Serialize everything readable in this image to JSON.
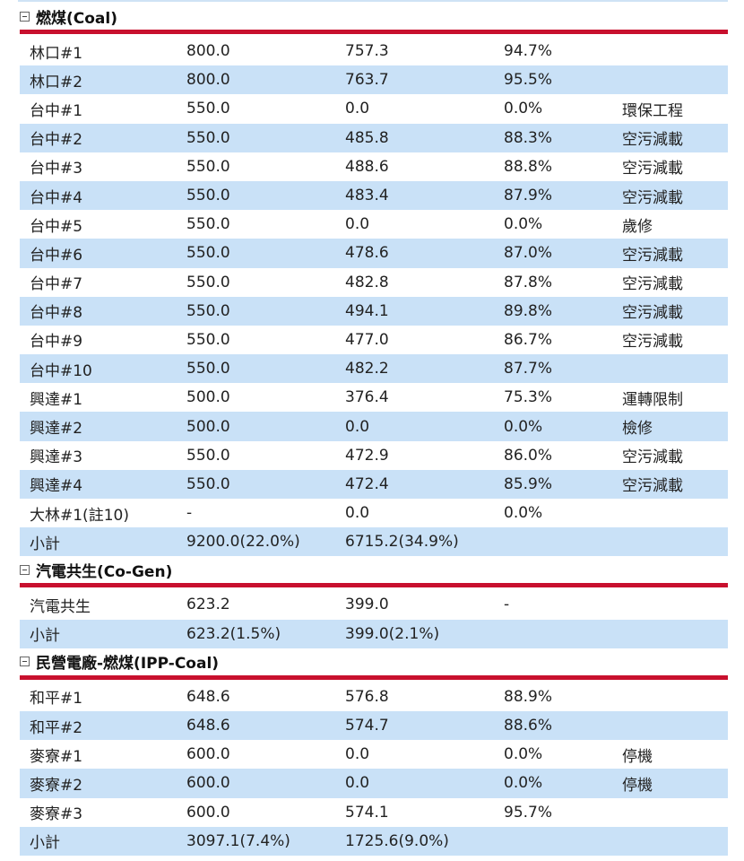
{
  "sections": [
    {
      "key": "coal",
      "title": "燃煤(Coal)",
      "rows": [
        {
          "name": "林口#1",
          "cap": "800.0",
          "net": "757.3",
          "pct": "94.7%",
          "note": ""
        },
        {
          "name": "林口#2",
          "cap": "800.0",
          "net": "763.7",
          "pct": "95.5%",
          "note": ""
        },
        {
          "name": "台中#1",
          "cap": "550.0",
          "net": "0.0",
          "pct": "0.0%",
          "note": "環保工程"
        },
        {
          "name": "台中#2",
          "cap": "550.0",
          "net": "485.8",
          "pct": "88.3%",
          "note": "空污減載"
        },
        {
          "name": "台中#3",
          "cap": "550.0",
          "net": "488.6",
          "pct": "88.8%",
          "note": "空污減載"
        },
        {
          "name": "台中#4",
          "cap": "550.0",
          "net": "483.4",
          "pct": "87.9%",
          "note": "空污減載"
        },
        {
          "name": "台中#5",
          "cap": "550.0",
          "net": "0.0",
          "pct": "0.0%",
          "note": "歲修"
        },
        {
          "name": "台中#6",
          "cap": "550.0",
          "net": "478.6",
          "pct": "87.0%",
          "note": "空污減載"
        },
        {
          "name": "台中#7",
          "cap": "550.0",
          "net": "482.8",
          "pct": "87.8%",
          "note": "空污減載"
        },
        {
          "name": "台中#8",
          "cap": "550.0",
          "net": "494.1",
          "pct": "89.8%",
          "note": "空污減載"
        },
        {
          "name": "台中#9",
          "cap": "550.0",
          "net": "477.0",
          "pct": "86.7%",
          "note": "空污減載"
        },
        {
          "name": "台中#10",
          "cap": "550.0",
          "net": "482.2",
          "pct": "87.7%",
          "note": ""
        },
        {
          "name": "興達#1",
          "cap": "500.0",
          "net": "376.4",
          "pct": "75.3%",
          "note": "運轉限制"
        },
        {
          "name": "興達#2",
          "cap": "500.0",
          "net": "0.0",
          "pct": "0.0%",
          "note": "檢修"
        },
        {
          "name": "興達#3",
          "cap": "550.0",
          "net": "472.9",
          "pct": "86.0%",
          "note": "空污減載"
        },
        {
          "name": "興達#4",
          "cap": "550.0",
          "net": "472.4",
          "pct": "85.9%",
          "note": "空污減載"
        },
        {
          "name": "大林#1(註10)",
          "cap": "-",
          "net": "0.0",
          "pct": "0.0%",
          "note": ""
        },
        {
          "name": "小計",
          "cap": "9200.0(22.0%)",
          "net": "6715.2(34.9%)",
          "pct": "",
          "note": ""
        }
      ]
    },
    {
      "key": "cogen",
      "title": "汽電共生(Co-Gen)",
      "rows": [
        {
          "name": "汽電共生",
          "cap": "623.2",
          "net": "399.0",
          "pct": "-",
          "note": ""
        },
        {
          "name": "小計",
          "cap": "623.2(1.5%)",
          "net": "399.0(2.1%)",
          "pct": "",
          "note": ""
        }
      ]
    },
    {
      "key": "ipp_coal",
      "title": "民營電廠-燃煤(IPP-Coal)",
      "rows": [
        {
          "name": "和平#1",
          "cap": "648.6",
          "net": "576.8",
          "pct": "88.9%",
          "note": ""
        },
        {
          "name": "和平#2",
          "cap": "648.6",
          "net": "574.7",
          "pct": "88.6%",
          "note": ""
        },
        {
          "name": "麥寮#1",
          "cap": "600.0",
          "net": "0.0",
          "pct": "0.0%",
          "note": "停機"
        },
        {
          "name": "麥寮#2",
          "cap": "600.0",
          "net": "0.0",
          "pct": "0.0%",
          "note": "停機"
        },
        {
          "name": "麥寮#3",
          "cap": "600.0",
          "net": "574.1",
          "pct": "95.7%",
          "note": ""
        },
        {
          "name": "小計",
          "cap": "3097.1(7.4%)",
          "net": "1725.6(9.0%)",
          "pct": "",
          "note": ""
        }
      ]
    }
  ]
}
